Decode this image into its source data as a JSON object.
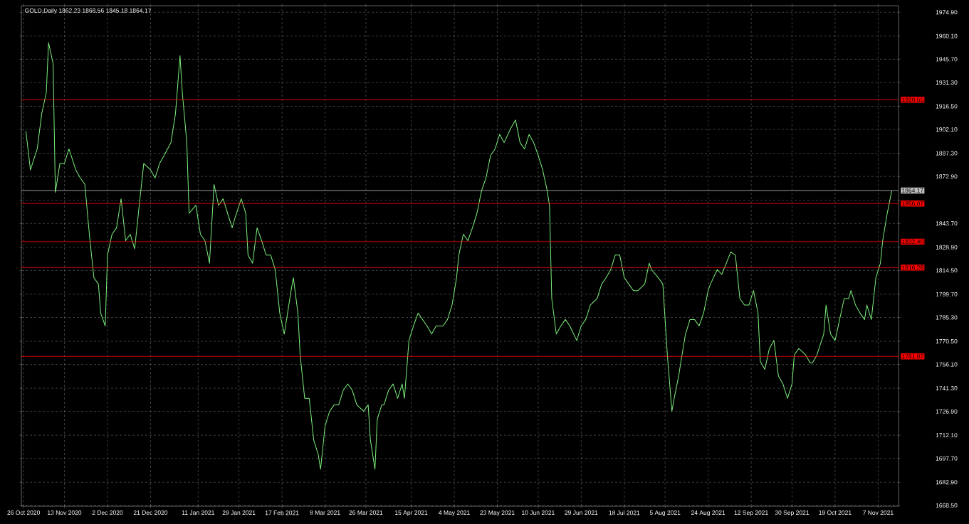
{
  "chart_data": {
    "type": "line",
    "title": "GOLD,Daily  1862.23 1868.56 1845.18 1864.17",
    "x": [
      "2020-10-27",
      "2020-10-29",
      "2020-11-01",
      "2020-11-03",
      "2020-11-05",
      "2020-11-06",
      "2020-11-08",
      "2020-11-09",
      "2020-11-11",
      "2020-11-13",
      "2020-11-15",
      "2020-11-18",
      "2020-11-20",
      "2020-11-22",
      "2020-11-24",
      "2020-11-26",
      "2020-11-28",
      "2020-11-29",
      "2020-12-01",
      "2020-12-02",
      "2020-12-04",
      "2020-12-06",
      "2020-12-08",
      "2020-12-10",
      "2020-12-12",
      "2020-12-14",
      "2020-12-16",
      "2020-12-18",
      "2020-12-21",
      "2020-12-23",
      "2020-12-25",
      "2020-12-27",
      "2020-12-30",
      "2021-01-01",
      "2021-01-03",
      "2021-01-04",
      "2021-01-06",
      "2021-01-07",
      "2021-01-10",
      "2021-01-12",
      "2021-01-14",
      "2021-01-16",
      "2021-01-18",
      "2021-01-20",
      "2021-01-22",
      "2021-01-24",
      "2021-01-26",
      "2021-01-27",
      "2021-01-30",
      "2021-02-01",
      "2021-02-02",
      "2021-02-04",
      "2021-02-06",
      "2021-02-08",
      "2021-02-10",
      "2021-02-12",
      "2021-02-14",
      "2021-02-16",
      "2021-02-18",
      "2021-02-21",
      "2021-02-22",
      "2021-02-24",
      "2021-02-25",
      "2021-02-27",
      "2021-03-01",
      "2021-03-03",
      "2021-03-05",
      "2021-03-06",
      "2021-03-08",
      "2021-03-10",
      "2021-03-12",
      "2021-03-14",
      "2021-03-16",
      "2021-03-18",
      "2021-03-20",
      "2021-03-22",
      "2021-03-25",
      "2021-03-27",
      "2021-03-28",
      "2021-03-30",
      "2021-03-31",
      "2021-04-02",
      "2021-04-03",
      "2021-04-05",
      "2021-04-07",
      "2021-04-09",
      "2021-04-11",
      "2021-04-12",
      "2021-04-14",
      "2021-04-16",
      "2021-04-18",
      "2021-04-20",
      "2021-04-22",
      "2021-04-24",
      "2021-04-26",
      "2021-04-29",
      "2021-05-01",
      "2021-05-03",
      "2021-05-05",
      "2021-05-06",
      "2021-05-08",
      "2021-05-10",
      "2021-05-12",
      "2021-05-14",
      "2021-05-16",
      "2021-05-18",
      "2021-05-20",
      "2021-05-22",
      "2021-05-24",
      "2021-05-26",
      "2021-05-29",
      "2021-05-31",
      "2021-06-02",
      "2021-06-04",
      "2021-06-06",
      "2021-06-08",
      "2021-06-10",
      "2021-06-12",
      "2021-06-14",
      "2021-06-15",
      "2021-06-16",
      "2021-06-18",
      "2021-06-20",
      "2021-06-22",
      "2021-06-24",
      "2021-06-27",
      "2021-06-29",
      "2021-07-01",
      "2021-07-03",
      "2021-07-06",
      "2021-07-08",
      "2021-07-10",
      "2021-07-12",
      "2021-07-14",
      "2021-07-16",
      "2021-07-18",
      "2021-07-20",
      "2021-07-22",
      "2021-07-24",
      "2021-07-27",
      "2021-07-29",
      "2021-07-30",
      "2021-08-02",
      "2021-08-04",
      "2021-08-06",
      "2021-08-08",
      "2021-08-09",
      "2021-08-11",
      "2021-08-12",
      "2021-08-14",
      "2021-08-16",
      "2021-08-18",
      "2021-08-20",
      "2021-08-22",
      "2021-08-24",
      "2021-08-25",
      "2021-08-28",
      "2021-08-30",
      "2021-09-01",
      "2021-09-03",
      "2021-09-05",
      "2021-09-07",
      "2021-09-09",
      "2021-09-11",
      "2021-09-13",
      "2021-09-15",
      "2021-09-16",
      "2021-09-18",
      "2021-09-20",
      "2021-09-22",
      "2021-09-24",
      "2021-09-26",
      "2021-09-28",
      "2021-09-30",
      "2021-10-01",
      "2021-10-03",
      "2021-10-06",
      "2021-10-08",
      "2021-10-09",
      "2021-10-11",
      "2021-10-14",
      "2021-10-15",
      "2021-10-17",
      "2021-10-19",
      "2021-10-21",
      "2021-10-23",
      "2021-10-25",
      "2021-10-26",
      "2021-10-28",
      "2021-10-30",
      "2021-11-01",
      "2021-11-02",
      "2021-11-04",
      "2021-11-06",
      "2021-11-08",
      "2021-11-09",
      "2021-11-11",
      "2021-11-13"
    ],
    "series": [
      {
        "color": "#7cf07c",
        "values": [
          1901,
          1877,
          1890,
          1912,
          1925,
          1956,
          1943,
          1863,
          1881,
          1881,
          1890,
          1877,
          1872,
          1868,
          1837,
          1810,
          1806,
          1788,
          1780,
          1824,
          1837,
          1841,
          1859,
          1833,
          1837,
          1828,
          1855,
          1881,
          1877,
          1872,
          1881,
          1886,
          1894,
          1912,
          1948,
          1925,
          1894,
          1850,
          1855,
          1837,
          1833,
          1819,
          1868,
          1855,
          1859,
          1850,
          1841,
          1846,
          1859,
          1850,
          1824,
          1819,
          1841,
          1833,
          1824,
          1824,
          1815,
          1788,
          1775,
          1802,
          1810,
          1788,
          1762,
          1735,
          1735,
          1709,
          1700,
          1691,
          1718,
          1727,
          1731,
          1731,
          1740,
          1744,
          1740,
          1731,
          1727,
          1731,
          1709,
          1691,
          1722,
          1731,
          1731,
          1740,
          1744,
          1735,
          1744,
          1735,
          1771,
          1780,
          1788,
          1784,
          1780,
          1775,
          1780,
          1780,
          1784,
          1793,
          1810,
          1824,
          1837,
          1833,
          1841,
          1850,
          1864,
          1872,
          1886,
          1890,
          1899,
          1894,
          1903,
          1908,
          1894,
          1890,
          1899,
          1894,
          1886,
          1877,
          1864,
          1855,
          1797,
          1775,
          1780,
          1784,
          1780,
          1771,
          1780,
          1784,
          1793,
          1797,
          1806,
          1810,
          1815,
          1824,
          1824,
          1810,
          1806,
          1802,
          1802,
          1806,
          1819,
          1815,
          1810,
          1806,
          1762,
          1727,
          1735,
          1749,
          1758,
          1775,
          1784,
          1784,
          1780,
          1788,
          1802,
          1806,
          1815,
          1812,
          1819,
          1826,
          1824,
          1797,
          1793,
          1793,
          1802,
          1788,
          1758,
          1753,
          1766,
          1771,
          1749,
          1744,
          1735,
          1744,
          1762,
          1766,
          1762,
          1757,
          1757,
          1762,
          1775,
          1793,
          1775,
          1771,
          1784,
          1797,
          1797,
          1802,
          1793,
          1788,
          1784,
          1793,
          1784,
          1810,
          1819,
          1833,
          1850,
          1864
        ]
      }
    ],
    "xlim": [
      "2020-10-25",
      "2021-11-16"
    ],
    "xticks": [
      {
        "value": "2020-10-26",
        "label": "26 Oct 2020"
      },
      {
        "value": "2020-11-13",
        "label": "13 Nov 2020"
      },
      {
        "value": "2020-12-02",
        "label": "2 Dec 2020"
      },
      {
        "value": "2020-12-21",
        "label": "21 Dec 2020"
      },
      {
        "value": "2021-01-11",
        "label": "11 Jan 2021"
      },
      {
        "value": "2021-01-29",
        "label": "29 Jan 2021"
      },
      {
        "value": "2021-02-17",
        "label": "17 Feb 2021"
      },
      {
        "value": "2021-03-08",
        "label": "8 Mar 2021"
      },
      {
        "value": "2021-03-26",
        "label": "26 Mar 2021"
      },
      {
        "value": "2021-04-15",
        "label": "15 Apr 2021"
      },
      {
        "value": "2021-05-04",
        "label": "4 May 2021"
      },
      {
        "value": "2021-05-23",
        "label": "23 May 2021"
      },
      {
        "value": "2021-06-10",
        "label": "10 Jun 2021"
      },
      {
        "value": "2021-06-29",
        "label": "29 Jun 2021"
      },
      {
        "value": "2021-07-18",
        "label": "18 Jul 2021"
      },
      {
        "value": "2021-08-05",
        "label": "5 Aug 2021"
      },
      {
        "value": "2021-08-24",
        "label": "24 Aug 2021"
      },
      {
        "value": "2021-09-12",
        "label": "12 Sep 2021"
      },
      {
        "value": "2021-09-30",
        "label": "30 Sep 2021"
      },
      {
        "value": "2021-10-19",
        "label": "19 Oct 2021"
      },
      {
        "value": "2021-11-07",
        "label": "7 Nov 2021"
      }
    ],
    "ylim": [
      1668,
      1979
    ],
    "yticks": [
      {
        "value": 1668.5,
        "label": "1668.50"
      },
      {
        "value": 1682.9,
        "label": "1682.90"
      },
      {
        "value": 1697.7,
        "label": "1697.70"
      },
      {
        "value": 1712.1,
        "label": "1712.10"
      },
      {
        "value": 1726.9,
        "label": "1726.90"
      },
      {
        "value": 1741.3,
        "label": "1741.30"
      },
      {
        "value": 1756.1,
        "label": "1756.10"
      },
      {
        "value": 1770.5,
        "label": "1770.50"
      },
      {
        "value": 1785.3,
        "label": "1785.30"
      },
      {
        "value": 1799.7,
        "label": "1799.70"
      },
      {
        "value": 1814.5,
        "label": "1814.50"
      },
      {
        "value": 1828.9,
        "label": "1828.90"
      },
      {
        "value": 1843.7,
        "label": "1843.70"
      },
      {
        "value": 1858.1,
        "label": null
      },
      {
        "value": 1872.9,
        "label": "1872.90"
      },
      {
        "value": 1887.3,
        "label": "1887.30"
      },
      {
        "value": 1902.1,
        "label": "1902.10"
      },
      {
        "value": 1916.5,
        "label": "1916.50"
      },
      {
        "value": 1931.3,
        "label": "1931.30"
      },
      {
        "value": 1945.7,
        "label": "1945.70"
      },
      {
        "value": 1960.1,
        "label": "1960.10"
      },
      {
        "value": 1974.9,
        "label": "1974.90"
      }
    ],
    "ref_lines": [
      {
        "axis": "y",
        "value": 1920.55,
        "label": "1920.55",
        "color": "#ff0000"
      },
      {
        "axis": "y",
        "value": 1864.17,
        "label": "1864.17",
        "color": "#c0c0c0"
      },
      {
        "axis": "y",
        "value": 1856.07,
        "label": "1856.07",
        "color": "#ff0000"
      },
      {
        "axis": "y",
        "value": 1832.4,
        "label": "1832.40",
        "color": "#ff0000"
      },
      {
        "axis": "y",
        "value": 1816.28,
        "label": "1816.28",
        "color": "#ff0000"
      },
      {
        "axis": "y",
        "value": 1761.07,
        "label": "1761.07",
        "color": "#ff0000"
      }
    ],
    "grid": true,
    "line_style": "solid"
  }
}
